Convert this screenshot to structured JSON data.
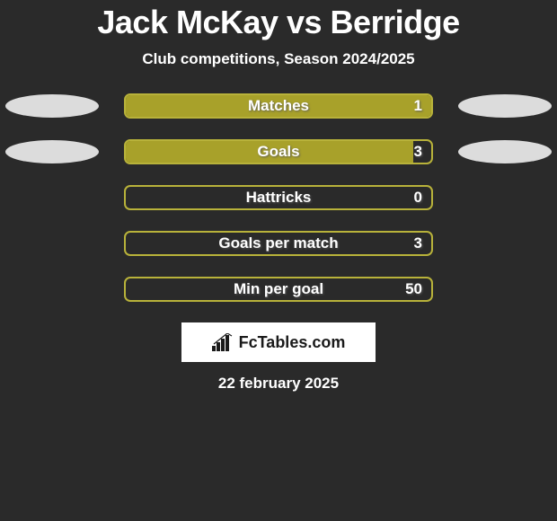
{
  "title": "Jack McKay vs Berridge",
  "subtitle": "Club competitions, Season 2024/2025",
  "brand": "FcTables.com",
  "date": "22 february 2025",
  "colors": {
    "background": "#2a2a2a",
    "bar_fill": "#a8a12a",
    "bar_border": "#b8b23a",
    "ellipse": "#dcdcdc",
    "text": "#ffffff",
    "brand_bg": "#ffffff",
    "brand_text": "#1a1a1a"
  },
  "max_value_assumed": 100,
  "bars": [
    {
      "label": "Matches",
      "value": 1,
      "fill_pct": 100,
      "show_ellipses": true
    },
    {
      "label": "Goals",
      "value": 3,
      "fill_pct": 94,
      "show_ellipses": true
    },
    {
      "label": "Hattricks",
      "value": 0,
      "fill_pct": 0,
      "show_ellipses": false
    },
    {
      "label": "Goals per match",
      "value": 3,
      "fill_pct": 0,
      "show_ellipses": false
    },
    {
      "label": "Min per goal",
      "value": 50,
      "fill_pct": 0,
      "show_ellipses": false
    }
  ]
}
